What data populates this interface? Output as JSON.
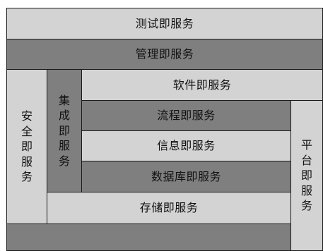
{
  "diagram": {
    "colors": {
      "light": "#d3d3d3",
      "dark": "#7f7f7f",
      "border": "#1a1a1a",
      "text": "#111111"
    },
    "layers": {
      "test": "测试即服务",
      "management": "管理即服务",
      "software": "软件即服务",
      "process": "流程即服务",
      "information": "信息即服务",
      "database": "数据库即服务",
      "storage": "存储即服务",
      "bottom": ""
    },
    "vertical": {
      "security": [
        "安",
        "全",
        "即",
        "服",
        "务"
      ],
      "integration": [
        "集",
        "成",
        "即",
        "服",
        "务"
      ],
      "platform": [
        "平",
        "台",
        "即",
        "服",
        "务"
      ]
    }
  }
}
